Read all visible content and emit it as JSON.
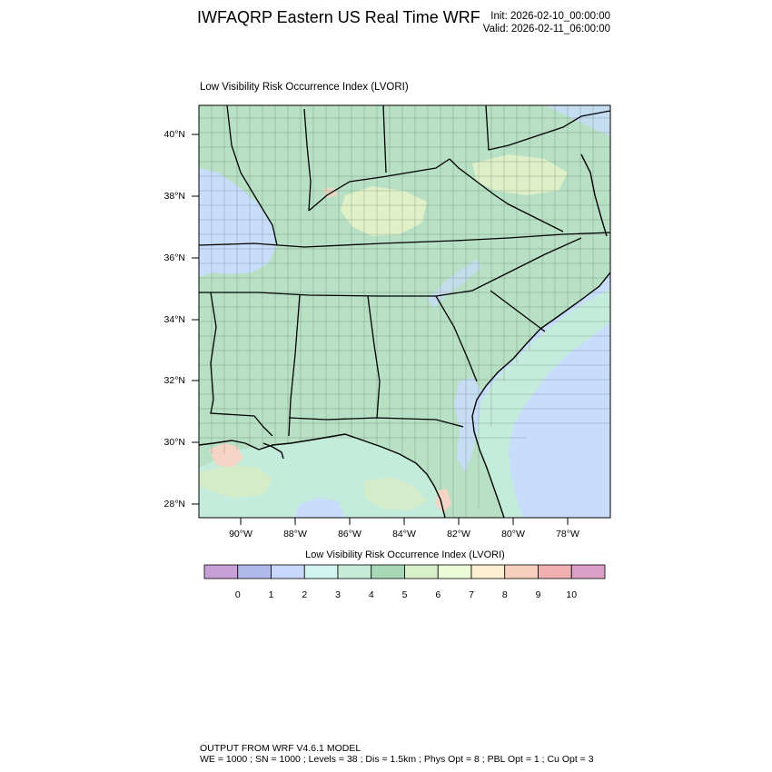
{
  "header": {
    "title": "IWFAQRP Eastern US Real Time WRF",
    "init": "Init: 2026-02-10_00:00:00",
    "valid": "Valid: 2026-02-11_06:00:00"
  },
  "panel": {
    "title": "Low Visibility Risk Occurrence Index   (LVORI)"
  },
  "axes": {
    "lat_labels": [
      "40°N",
      "38°N",
      "36°N",
      "34°N",
      "32°N",
      "30°N",
      "28°N"
    ],
    "lon_labels": [
      "90°W",
      "88°W",
      "86°W",
      "84°W",
      "82°W",
      "80°W",
      "78°W"
    ]
  },
  "colorbar": {
    "title": "Low Visibility Risk Occurrence Index  (LVORI)",
    "colors": [
      "#c8a0d8",
      "#b0b8ec",
      "#c8d8fc",
      "#d0f4f0",
      "#c4ecd8",
      "#a8d8b8",
      "#d8f0c8",
      "#ecfcd8",
      "#fcf0d0",
      "#f8d0c0",
      "#f0b0b0",
      "#dca0c8"
    ],
    "labels": [
      "0",
      "1",
      "2",
      "3",
      "4",
      "5",
      "6",
      "7",
      "8",
      "9",
      "10"
    ]
  },
  "map_colors": {
    "land": "#b8e0c4",
    "land_dark": "#a8d6b6",
    "ocean": "#c8dcfc",
    "gulf": "#c4ecdc",
    "warm_patch": "#e4f2c8",
    "hot_patch": "#f4d4c4"
  },
  "footer": {
    "line1": "OUTPUT FROM WRF V4.6.1 MODEL",
    "line2": "WE = 1000 ; SN = 1000 ; Levels = 38 ; Dis = 1.5km ; Phys Opt = 8 ; PBL Opt = 1 ; Cu Opt = 3"
  }
}
